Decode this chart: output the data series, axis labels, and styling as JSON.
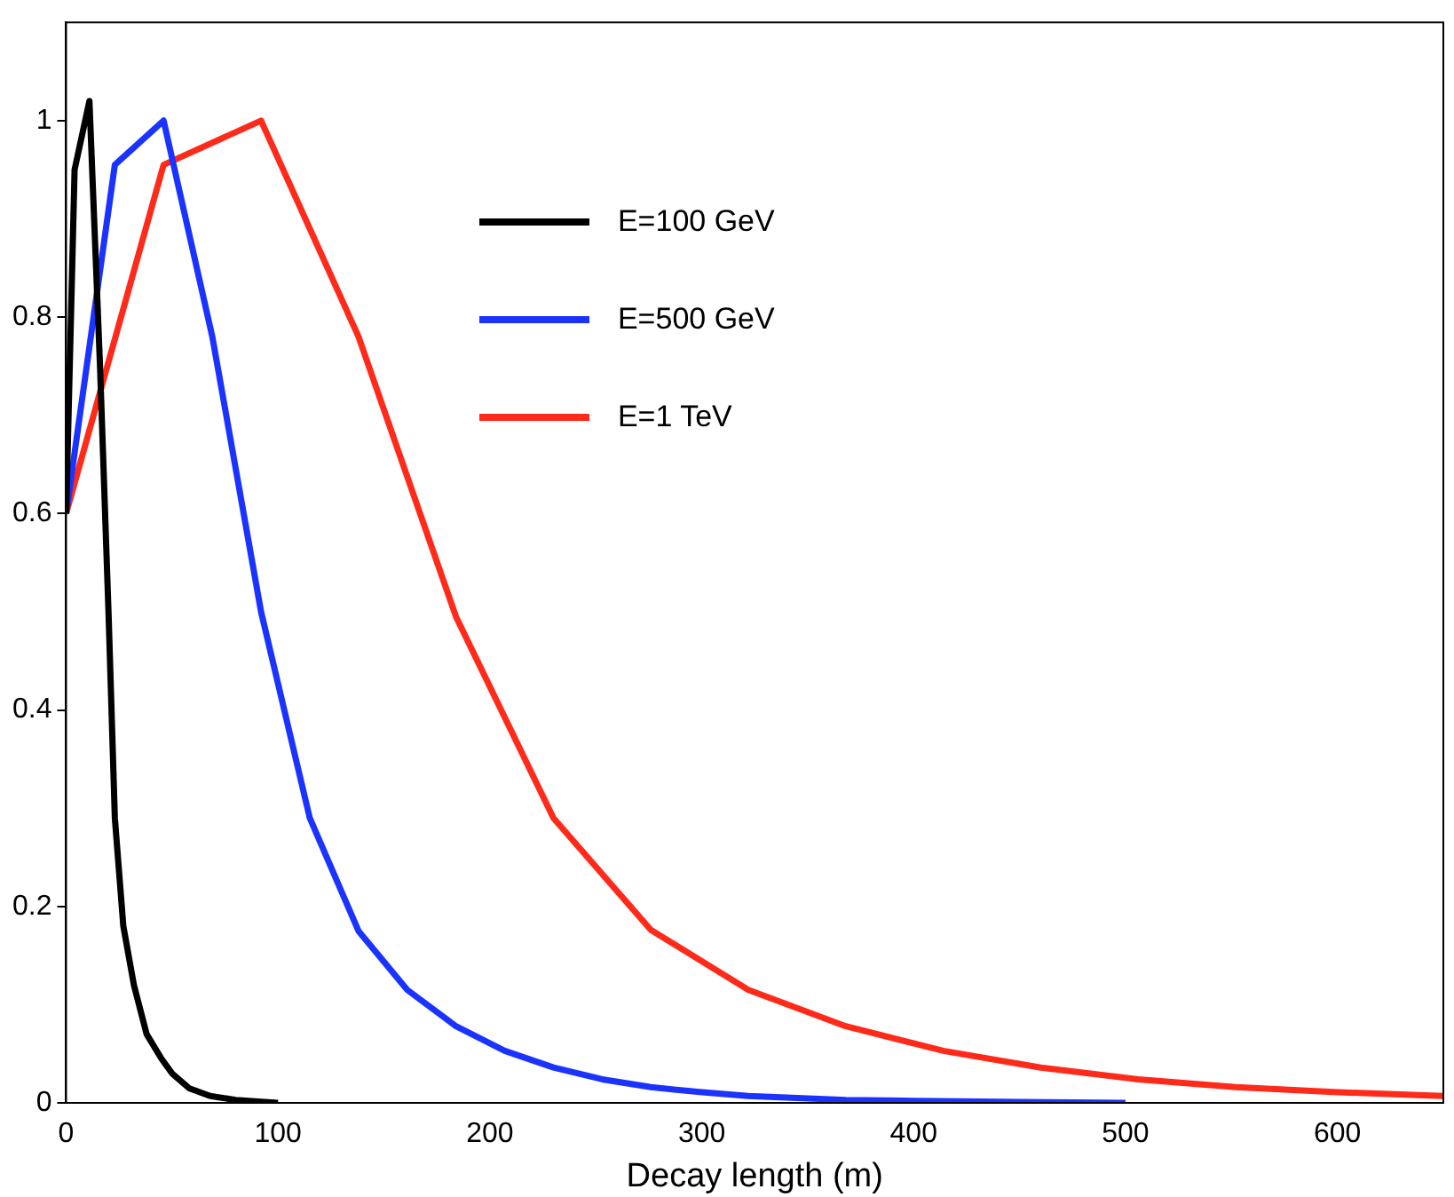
{
  "chart_data": {
    "type": "line",
    "xlabel": "Decay length (m)",
    "xlim": [
      0,
      650
    ],
    "xticks": [
      0,
      100,
      200,
      300,
      400,
      500,
      600
    ],
    "ylim": [
      0,
      1.1
    ],
    "yticks": [
      0,
      0.2,
      0.4,
      0.6,
      0.8,
      1
    ],
    "grid": false,
    "legend": "top",
    "marker": "none",
    "line_style": "solid",
    "series": [
      {
        "name": "E=100 GeV",
        "color": "#000000",
        "x": [
          0,
          4,
          11,
          16,
          20,
          23,
          27,
          32,
          38,
          45,
          50,
          58,
          68,
          80,
          100
        ],
        "values": [
          0.6,
          0.95,
          1.02,
          0.75,
          0.5,
          0.29,
          0.18,
          0.12,
          0.07,
          0.045,
          0.03,
          0.015,
          0.007,
          0.003,
          0
        ]
      },
      {
        "name": "E=500 GeV",
        "color": "#1a33ff",
        "x": [
          0,
          23,
          46,
          69,
          92,
          115,
          138,
          161,
          184,
          207,
          230,
          253,
          276,
          299,
          322,
          345,
          368,
          400,
          450,
          500
        ],
        "values": [
          0.6,
          0.955,
          1.0,
          0.78,
          0.5,
          0.29,
          0.175,
          0.115,
          0.078,
          0.053,
          0.036,
          0.024,
          0.016,
          0.011,
          0.007,
          0.005,
          0.003,
          0.002,
          0.001,
          0
        ]
      },
      {
        "name": "E=1 TeV",
        "color": "#ff2a1a",
        "x": [
          0,
          46,
          92,
          138,
          184,
          230,
          276,
          322,
          368,
          414,
          460,
          506,
          552,
          598,
          650
        ],
        "values": [
          0.6,
          0.955,
          1.0,
          0.78,
          0.495,
          0.29,
          0.176,
          0.115,
          0.078,
          0.053,
          0.036,
          0.024,
          0.016,
          0.011,
          0.007
        ]
      }
    ]
  }
}
